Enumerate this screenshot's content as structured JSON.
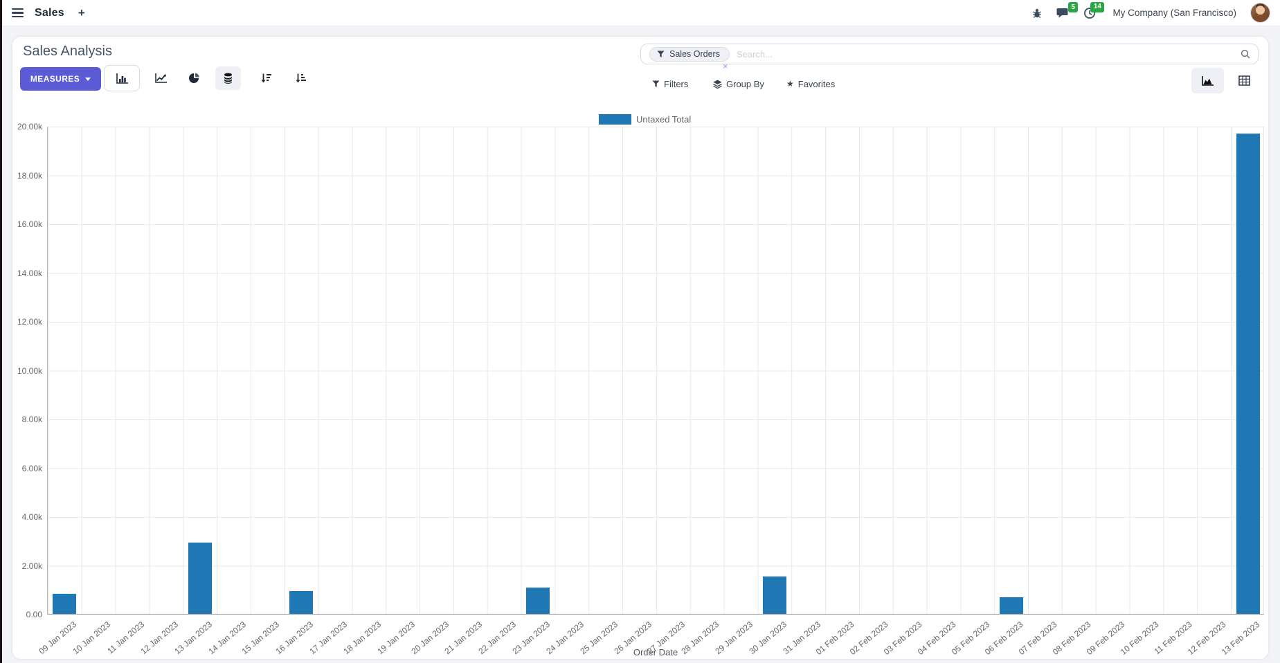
{
  "navbar": {
    "app_name": "Sales",
    "new_tab": "+",
    "messages_badge": "5",
    "activities_badge": "14",
    "company": "My Company (San Francisco)"
  },
  "control_panel": {
    "title": "Sales Analysis",
    "measures_label": "MEASURES",
    "search": {
      "facet": "Sales Orders",
      "facet_remove": "×",
      "placeholder": "Search..."
    },
    "filters_label": "Filters",
    "group_by_label": "Group By",
    "favorites_label": "Favorites",
    "favorites_star": "★"
  },
  "colors": {
    "primary": "#5c5bd6",
    "bar": "#1f77b4",
    "badge": "#28a745"
  },
  "chart_data": {
    "type": "bar",
    "title": "",
    "xlabel": "Order Date",
    "ylabel": "",
    "ylim": [
      0,
      20000
    ],
    "yticks": [
      "20.00k",
      "18.00k",
      "16.00k",
      "14.00k",
      "12.00k",
      "10.00k",
      "8.00k",
      "6.00k",
      "4.00k",
      "2.00k",
      "0.00"
    ],
    "grid": true,
    "legend_position": "top",
    "categories": [
      "09 Jan 2023",
      "10 Jan 2023",
      "11 Jan 2023",
      "12 Jan 2023",
      "13 Jan 2023",
      "14 Jan 2023",
      "15 Jan 2023",
      "16 Jan 2023",
      "17 Jan 2023",
      "18 Jan 2023",
      "19 Jan 2023",
      "20 Jan 2023",
      "21 Jan 2023",
      "22 Jan 2023",
      "23 Jan 2023",
      "24 Jan 2023",
      "25 Jan 2023",
      "26 Jan 2023",
      "27 Jan 2023",
      "28 Jan 2023",
      "29 Jan 2023",
      "30 Jan 2023",
      "31 Jan 2023",
      "01 Feb 2023",
      "02 Feb 2023",
      "03 Feb 2023",
      "04 Feb 2023",
      "05 Feb 2023",
      "06 Feb 2023",
      "07 Feb 2023",
      "08 Feb 2023",
      "09 Feb 2023",
      "10 Feb 2023",
      "11 Feb 2023",
      "12 Feb 2023",
      "13 Feb 2023"
    ],
    "series": [
      {
        "name": "Untaxed Total",
        "color": "#1f77b4",
        "values": [
          820,
          0,
          0,
          0,
          2920,
          0,
          0,
          940,
          0,
          0,
          0,
          0,
          0,
          0,
          1080,
          0,
          0,
          0,
          0,
          0,
          0,
          1530,
          0,
          0,
          0,
          0,
          0,
          0,
          680,
          0,
          0,
          0,
          0,
          0,
          0,
          19690
        ]
      }
    ]
  }
}
